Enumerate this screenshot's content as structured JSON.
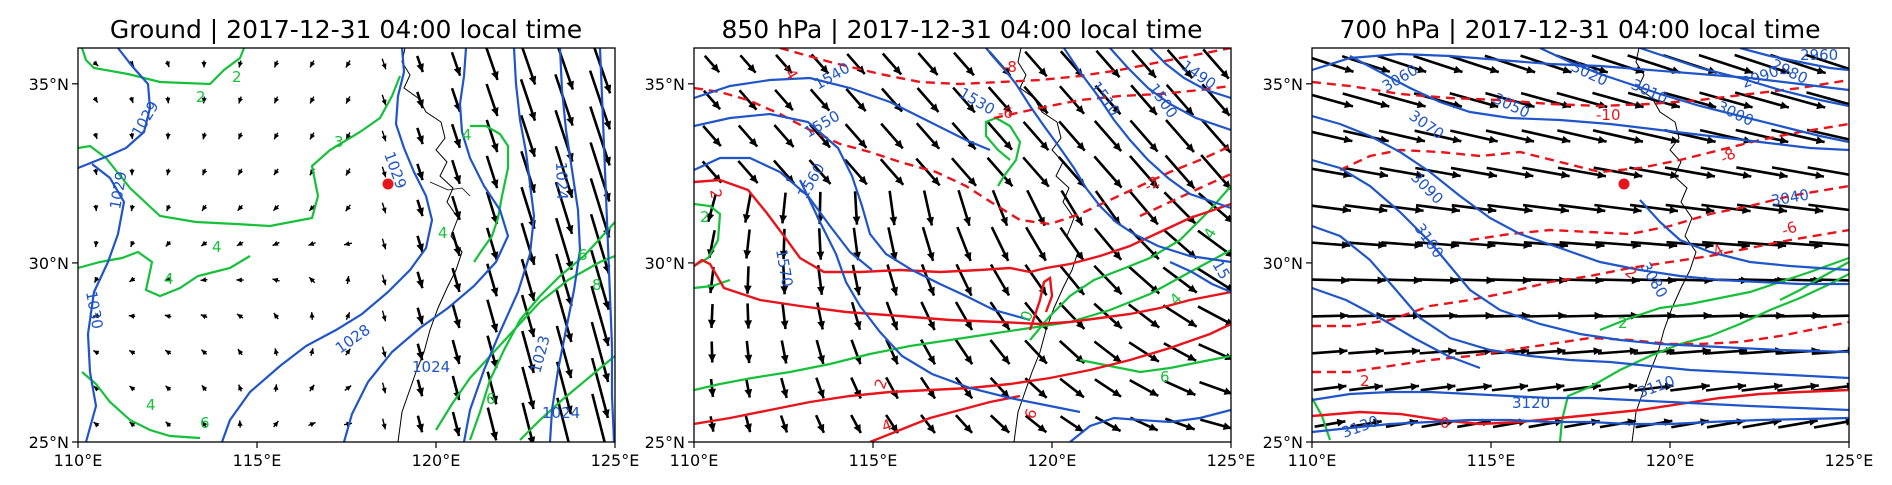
{
  "figure": {
    "panels": [
      {
        "title": "Ground | 2017-12-31 04:00 local time",
        "lon_range": [
          110,
          125
        ],
        "lat_range": [
          25,
          36
        ],
        "x_ticks": [
          "110°E",
          "115°E",
          "120°E",
          "125°E"
        ],
        "y_ticks": [
          "25°N",
          "30°N",
          "35°N"
        ],
        "contour_labels": {
          "blue": [
            "1029",
            "1029",
            "1029",
            "1030",
            "1028",
            "1024",
            "1024",
            "1023",
            "1024"
          ],
          "green": [
            "2",
            "2",
            "3",
            "4",
            "4",
            "4",
            "4",
            "4",
            "6",
            "6",
            "8",
            "6"
          ],
          "red": []
        }
      },
      {
        "title": "850 hPa | 2017-12-31 04:00 local time",
        "lon_range": [
          110,
          125
        ],
        "lat_range": [
          25,
          36
        ],
        "x_ticks": [
          "110°E",
          "115°E",
          "120°E",
          "125°E"
        ],
        "y_ticks": [
          "25°N",
          "30°N",
          "35°N"
        ],
        "contour_labels": {
          "blue": [
            "1540",
            "1530",
            "1510",
            "1500",
            "1490",
            "1550",
            "1560",
            "1570",
            "15"
          ],
          "green": [
            "2",
            "0",
            "4",
            "6",
            "4"
          ],
          "red": [
            "-4",
            "-8",
            "-6",
            "-2",
            "2",
            "2",
            "4",
            "6"
          ]
        }
      },
      {
        "title": "700 hPa | 2017-12-31 04:00 local time",
        "lon_range": [
          110,
          125
        ],
        "lat_range": [
          25,
          36
        ],
        "x_ticks": [
          "110°E",
          "115°E",
          "120°E",
          "125°E"
        ],
        "y_ticks": [
          "25°N",
          "30°N",
          "35°N"
        ],
        "contour_labels": {
          "blue": [
            "3060",
            "3070",
            "3050",
            "3020",
            "3010",
            "2990",
            "2980",
            "2960",
            "3000",
            "3090",
            "3100",
            "3080",
            "3040",
            "3120",
            "3110",
            "3130"
          ],
          "green": [
            "2"
          ],
          "red": [
            "-10",
            "-8",
            "-6",
            "-2",
            "2",
            "0",
            "-4"
          ]
        }
      }
    ],
    "station_marker": {
      "lon": 118.8,
      "lat": 32.2,
      "color": "#e8141b"
    },
    "colors": {
      "pressure_contour": "#1f55c8",
      "temperature_positive": "#e8141b",
      "temperature_negative_dashed": "#e8141b",
      "humidity_contour": "#16c03a",
      "wind_vector": "#000000",
      "coastline": "#000000"
    }
  }
}
